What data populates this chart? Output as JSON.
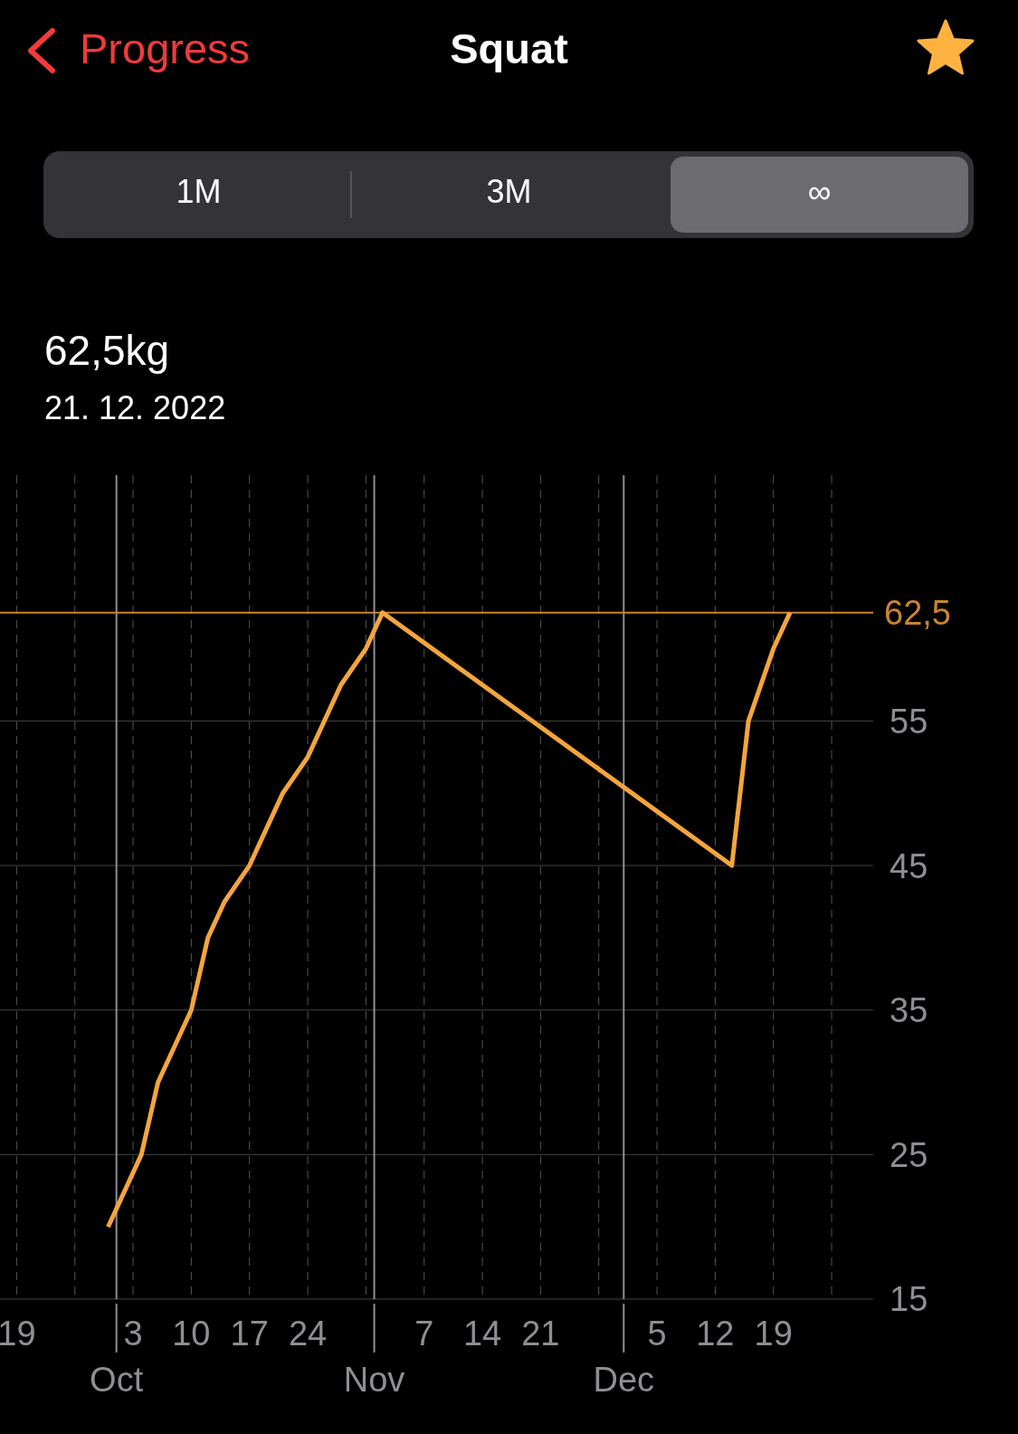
{
  "chart_data": {
    "type": "line",
    "title": "Squat",
    "annotations": [
      "Progress",
      "1M",
      "3M",
      "∞",
      "62,5kg",
      "21. 12. 2022"
    ],
    "x": [
      "2022-09-30",
      "2022-10-04",
      "2022-10-06",
      "2022-10-10",
      "2022-10-12",
      "2022-10-14",
      "2022-10-17",
      "2022-10-19",
      "2022-10-21",
      "2022-10-24",
      "2022-10-28",
      "2022-10-31",
      "2022-11-02",
      "2022-12-14",
      "2022-12-16",
      "2022-12-19",
      "2022-12-21"
    ],
    "series": [
      {
        "color": "#f4a53c",
        "values": [
          20,
          25,
          30,
          35,
          40,
          42.5,
          45,
          47.5,
          50,
          52.5,
          57.5,
          60,
          62.5,
          45,
          55,
          60,
          62.5
        ]
      }
    ],
    "xlim": [
      "2022-09-17",
      "2022-12-31"
    ],
    "xticks": [
      {
        "value": "2022-09-19",
        "label": "19"
      },
      {
        "value": "2022-09-26",
        "label": null
      },
      {
        "value": "2022-10-03",
        "label": "3"
      },
      {
        "value": "2022-10-10",
        "label": "10"
      },
      {
        "value": "2022-10-17",
        "label": "17"
      },
      {
        "value": "2022-10-24",
        "label": "24"
      },
      {
        "value": "2022-10-31",
        "label": null
      },
      {
        "value": "2022-11-07",
        "label": "7"
      },
      {
        "value": "2022-11-14",
        "label": "14"
      },
      {
        "value": "2022-11-21",
        "label": "21"
      },
      {
        "value": "2022-11-28",
        "label": null
      },
      {
        "value": "2022-12-05",
        "label": "5"
      },
      {
        "value": "2022-12-12",
        "label": "12"
      },
      {
        "value": "2022-12-19",
        "label": "19"
      },
      {
        "value": "2022-12-26",
        "label": null
      }
    ],
    "ylim": [
      15,
      72
    ],
    "yticks": [
      15,
      25,
      35,
      45,
      55
    ],
    "x2lim": [
      "2022-09-17",
      "2022-12-31"
    ],
    "x2ticks": [
      {
        "value": "2022-10-01",
        "label": "Oct"
      },
      {
        "value": "2022-11-01",
        "label": "Nov"
      },
      {
        "value": "2022-12-01",
        "label": "Dec"
      }
    ],
    "ref_lines": [
      {
        "axis": "y",
        "value": 62.5,
        "label": "62,5",
        "color": "#c9862e"
      }
    ],
    "grid": true,
    "legend": false,
    "marker": "none",
    "line_style": "solid"
  }
}
